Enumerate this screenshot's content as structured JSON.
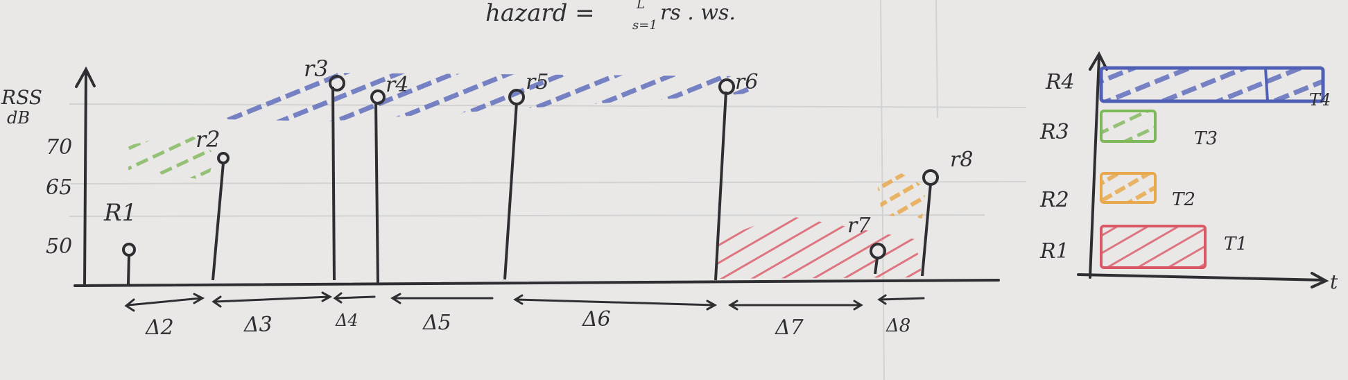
{
  "header": {
    "formula": "hazard =",
    "sum_upper": "L",
    "sum_lower": "s=1",
    "formula_tail": "rs . ws."
  },
  "axis": {
    "ylabel_line1": "RSS",
    "ylabel_line2": "dB",
    "yticks": [
      "70",
      "65",
      "50"
    ]
  },
  "readings": [
    {
      "label": "R1",
      "rss": 50
    },
    {
      "label": "r2",
      "rss": 68
    },
    {
      "label": "r3",
      "rss": 80
    },
    {
      "label": "r4",
      "rss": 79
    },
    {
      "label": "r5",
      "rss": 79
    },
    {
      "label": "r6",
      "rss": 80
    },
    {
      "label": "r7",
      "rss": 50
    },
    {
      "label": "r8",
      "rss": 63
    }
  ],
  "intervals": [
    "Δ2",
    "Δ3",
    "Δ4",
    "Δ5",
    "Δ6",
    "Δ7",
    "Δ8"
  ],
  "colors": {
    "green": "#7fb85a",
    "blue": "#4f5fb6",
    "red": "#d95a66",
    "orange": "#e8a94e",
    "ink": "#2f2f33"
  },
  "legend": {
    "rows": [
      {
        "label": "R4",
        "tag": "T4",
        "color": "#4f5fb6"
      },
      {
        "label": "R3",
        "tag": "T3",
        "color": "#7fb85a"
      },
      {
        "label": "R2",
        "tag": "T2",
        "color": "#e8a94e"
      },
      {
        "label": "R1",
        "tag": "T1",
        "color": "#d95a66"
      }
    ],
    "xaxis_label": "t"
  }
}
